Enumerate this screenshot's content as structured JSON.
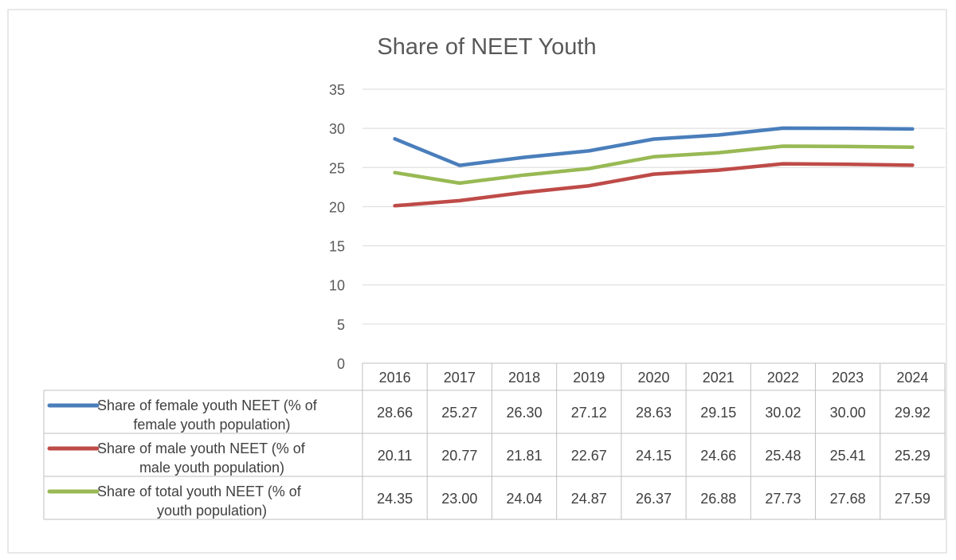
{
  "chart_data": {
    "type": "line",
    "title": "Share of NEET Youth",
    "xlabel": "",
    "ylabel": "",
    "ylim": [
      0,
      35
    ],
    "yticks": [
      0,
      5,
      10,
      15,
      20,
      25,
      30,
      35
    ],
    "grid": true,
    "legend": "data-table-below",
    "categories": [
      "2016",
      "2017",
      "2018",
      "2019",
      "2020",
      "2021",
      "2022",
      "2023",
      "2024"
    ],
    "series": [
      {
        "name": "Share of female youth NEET (% of female youth population)",
        "label_lines": [
          "Share of female youth NEET (% of",
          "female youth population)"
        ],
        "color": "#4a7ebb",
        "values": [
          28.66,
          25.27,
          26.3,
          27.12,
          28.63,
          29.15,
          30.02,
          30.0,
          29.92
        ],
        "labels": [
          "28.66",
          "25.27",
          "26.30",
          "27.12",
          "28.63",
          "29.15",
          "30.02",
          "30.00",
          "29.92"
        ]
      },
      {
        "name": "Share of male youth NEET (% of male youth population)",
        "label_lines": [
          "Share of male youth NEET (% of",
          "male youth population)"
        ],
        "color": "#be4b48",
        "values": [
          20.11,
          20.77,
          21.81,
          22.67,
          24.15,
          24.66,
          25.48,
          25.41,
          25.29
        ],
        "labels": [
          "20.11",
          "20.77",
          "21.81",
          "22.67",
          "24.15",
          "24.66",
          "25.48",
          "25.41",
          "25.29"
        ]
      },
      {
        "name": "Share of total youth NEET (% of youth population)",
        "label_lines": [
          "Share of total youth NEET (% of",
          "youth population)"
        ],
        "color": "#98b954",
        "values": [
          24.35,
          23.0,
          24.04,
          24.87,
          26.37,
          26.88,
          27.73,
          27.68,
          27.59
        ],
        "labels": [
          "24.35",
          "23.00",
          "24.04",
          "24.87",
          "26.37",
          "26.88",
          "27.73",
          "27.68",
          "27.59"
        ]
      }
    ]
  }
}
